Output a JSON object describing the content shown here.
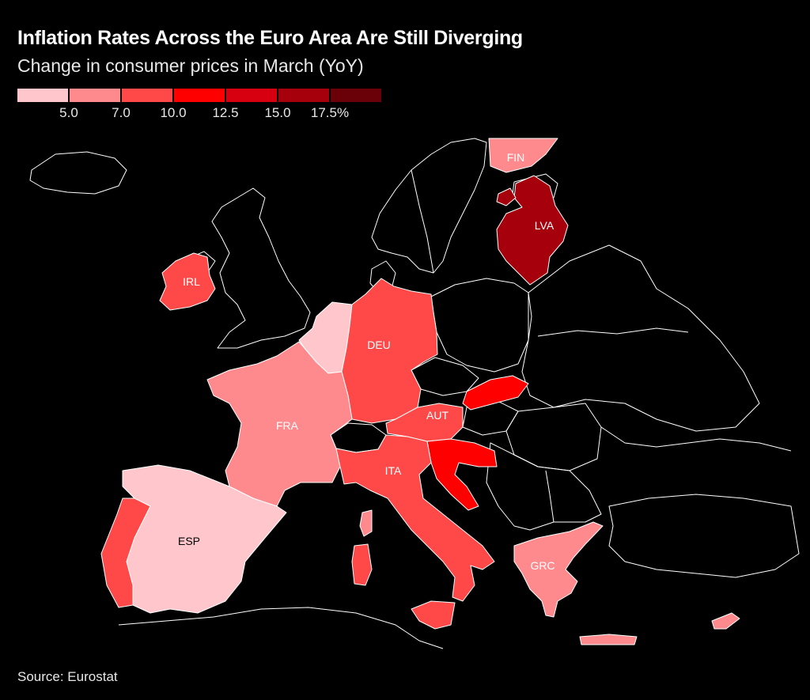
{
  "title": "Inflation Rates Across the Euro Area Are Still Diverging",
  "subtitle": "Change in consumer prices in March (YoY)",
  "source": "Source: Eurostat",
  "legend": {
    "colors": [
      "#ffc7cc",
      "#ff8a8e",
      "#ff4848",
      "#ff0000",
      "#d60010",
      "#a5000c",
      "#6a0008"
    ],
    "ticks": [
      "5.0",
      "7.0",
      "10.0",
      "12.5",
      "15.0",
      "17.5%"
    ]
  },
  "colors": {
    "background": "#000000",
    "border": "#ffffff"
  },
  "countries": [
    {
      "code": "FIN",
      "bin": 1,
      "label_color": "#ffffff"
    },
    {
      "code": "LVA",
      "bin": 5,
      "label_color": "#ffffff"
    },
    {
      "code": "IRL",
      "bin": 2,
      "label_color": "#ffffff"
    },
    {
      "code": "DEU",
      "bin": 2,
      "label_color": "#ffffff"
    },
    {
      "code": "FRA",
      "bin": 1,
      "label_color": "#ffffff"
    },
    {
      "code": "AUT",
      "bin": 2,
      "label_color": "#ffffff"
    },
    {
      "code": "ITA",
      "bin": 2,
      "label_color": "#ffffff"
    },
    {
      "code": "ESP",
      "bin": 0,
      "label_color": "#000000"
    },
    {
      "code": "GRC",
      "bin": 1,
      "label_color": "#ffffff"
    }
  ]
}
